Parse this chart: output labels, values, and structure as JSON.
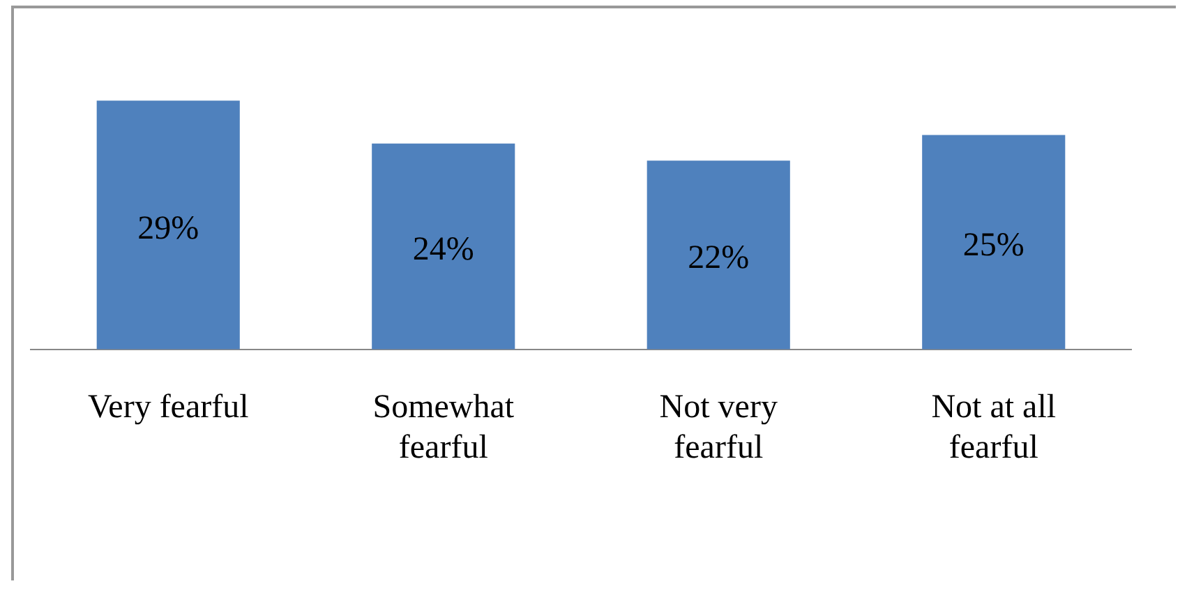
{
  "chart_data": {
    "type": "bar",
    "categories": [
      "Very fearful",
      "Somewhat fearful",
      "Not very fearful",
      "Not at all fearful"
    ],
    "values": [
      29,
      24,
      22,
      25
    ],
    "value_labels": [
      "29%",
      "24%",
      "22%",
      "25%"
    ],
    "color": "#4f81bd",
    "grid": false,
    "legend": false,
    "tick_labels": "x"
  }
}
